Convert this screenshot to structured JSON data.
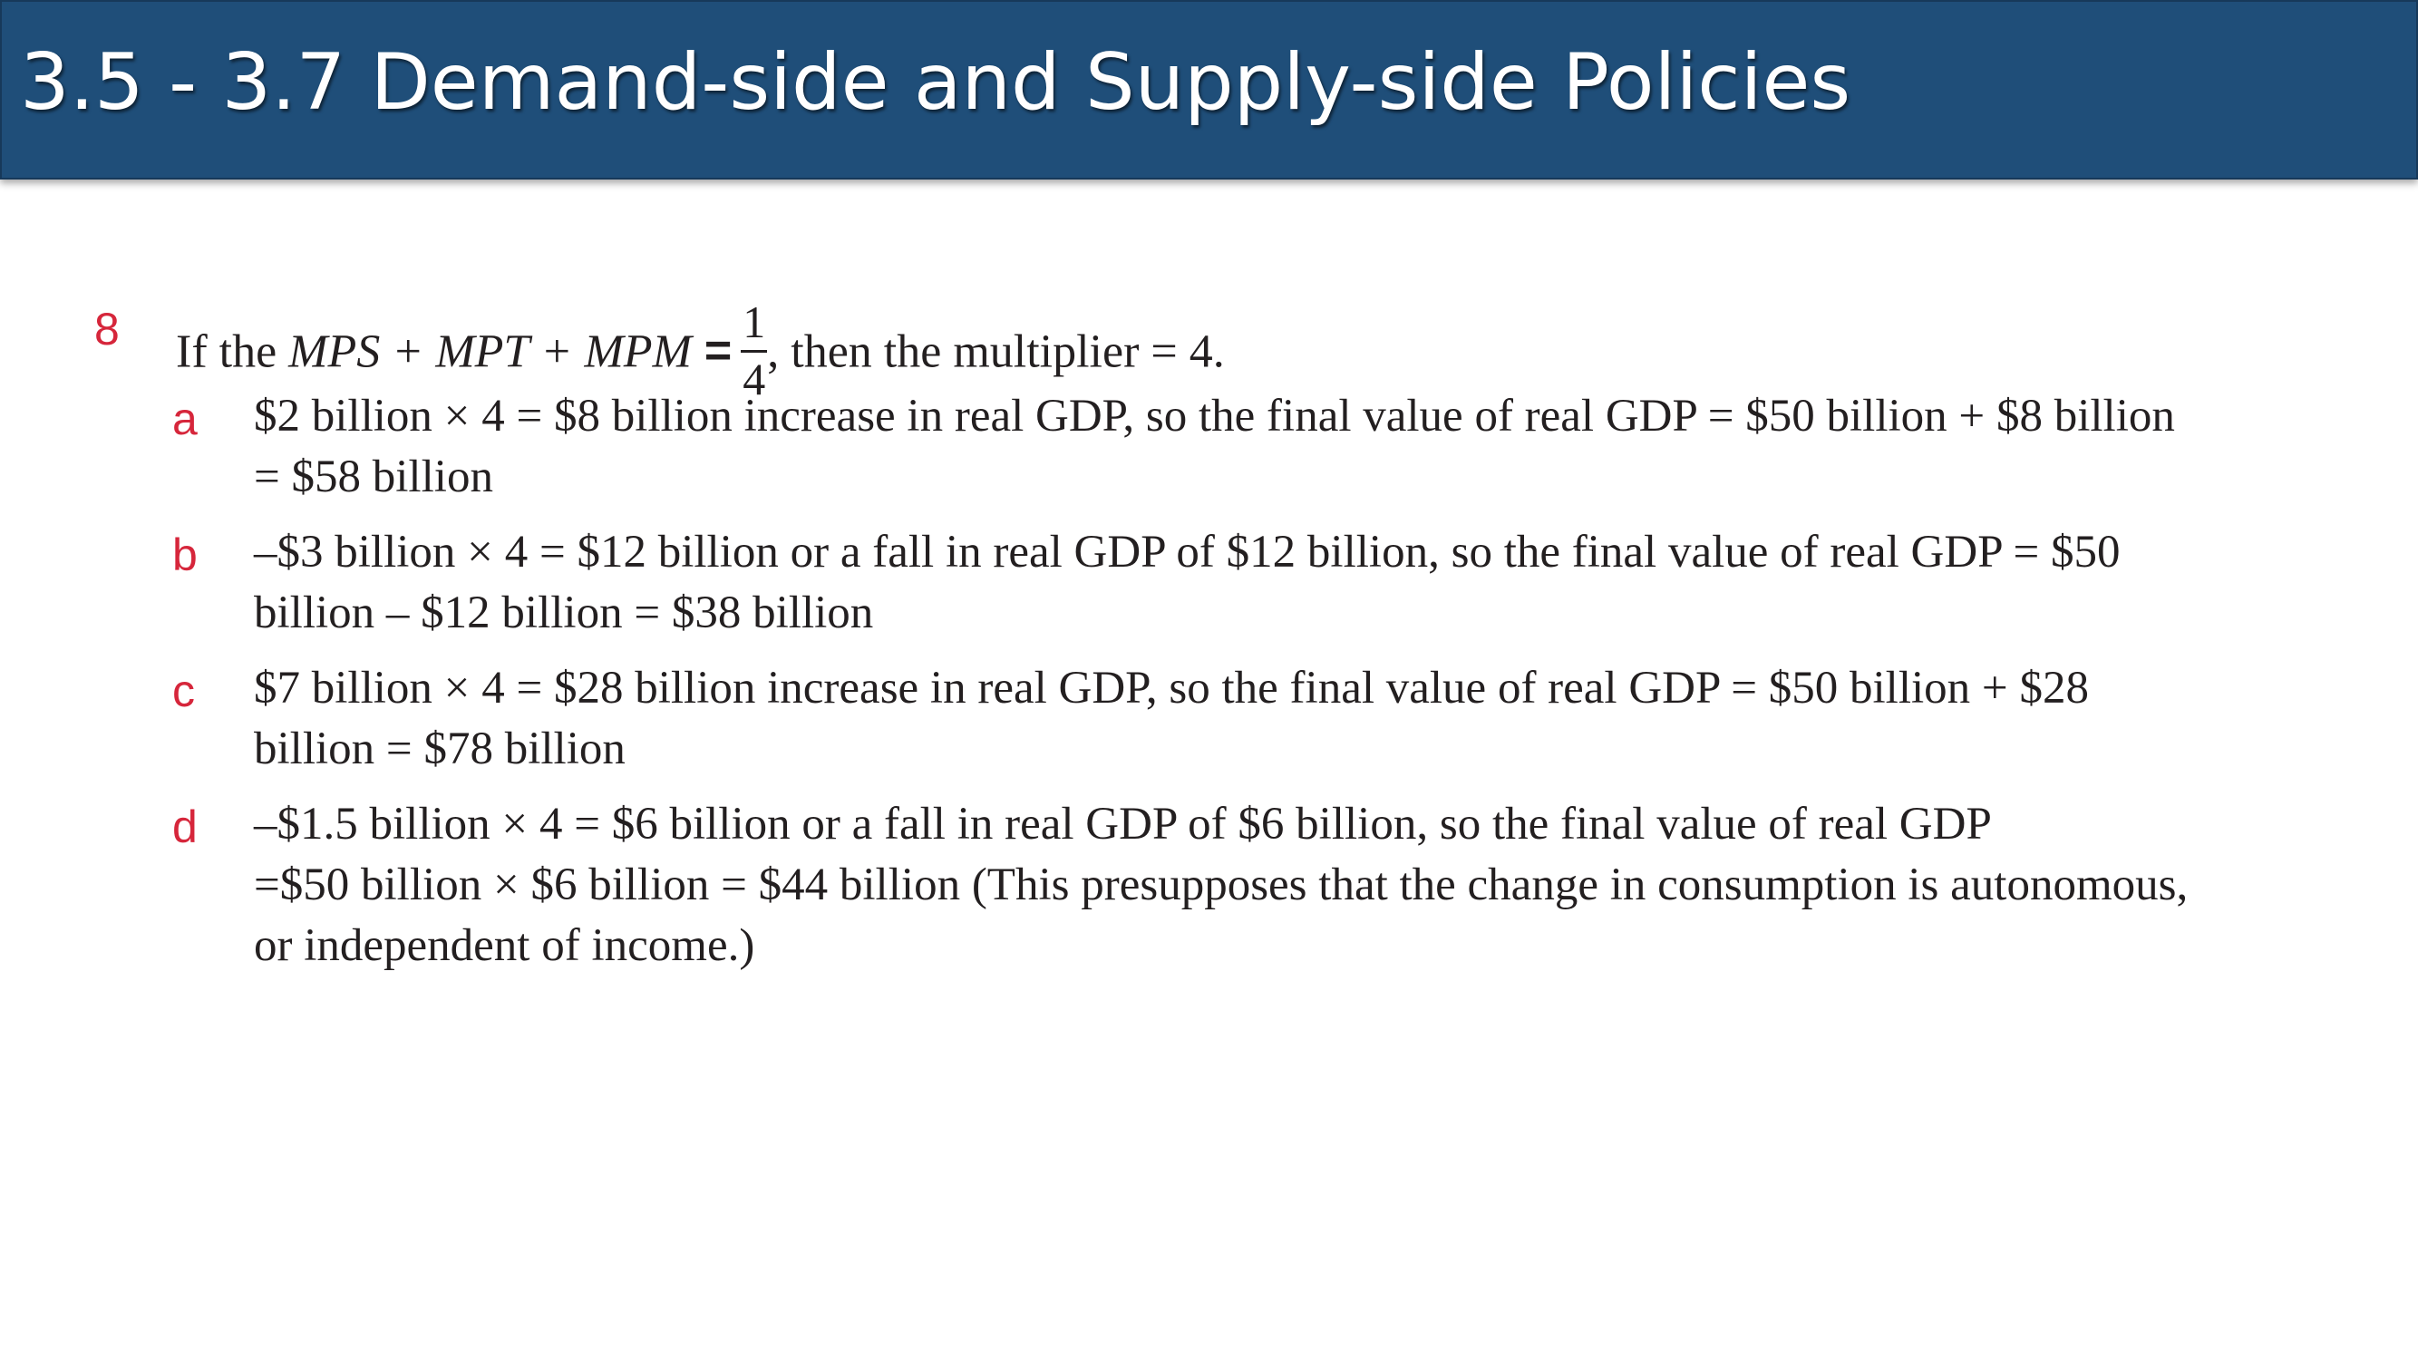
{
  "slide": {
    "title": "3.5 - 3.7 Demand-side and Supply-side Policies"
  },
  "question": {
    "number": "8",
    "intro": "If the ",
    "math_expression": "MPS + MPT + MPM",
    "equals": "=",
    "fraction_numerator": "1",
    "fraction_denominator": "4",
    "conclusion": ", then the multiplier = 4.",
    "parts": [
      {
        "label": "a",
        "lines": [
          "$2 billion × 4 = $8 billion increase in real GDP, so the final value of real GDP = $50 billion + $8 billion",
          "= $58 billion"
        ]
      },
      {
        "label": "b",
        "lines": [
          "–$3 billion × 4 = $12 billion or a fall in real GDP of $12 billion, so the final value of real GDP = $50",
          "billion – $12 billion = $38 billion"
        ]
      },
      {
        "label": "c",
        "lines": [
          "$7 billion × 4 = $28 billion increase in real GDP, so the final value of real GDP = $50 billion + $28",
          "billion = $78 billion"
        ]
      },
      {
        "label": "d",
        "lines": [
          "–$1.5 billion × 4 = $6 billion or a fall in real GDP of $6 billion, so the final value of real GDP",
          "=$50 billion × $6 billion = $44 billion (This presupposes that the change in consumption is autonomous,",
          "or independent of income.)"
        ]
      }
    ]
  },
  "colors": {
    "title_bar": "#1f4e79",
    "title_text": "#ffffff",
    "labels": "#d6263b",
    "body_text": "#231f20"
  }
}
